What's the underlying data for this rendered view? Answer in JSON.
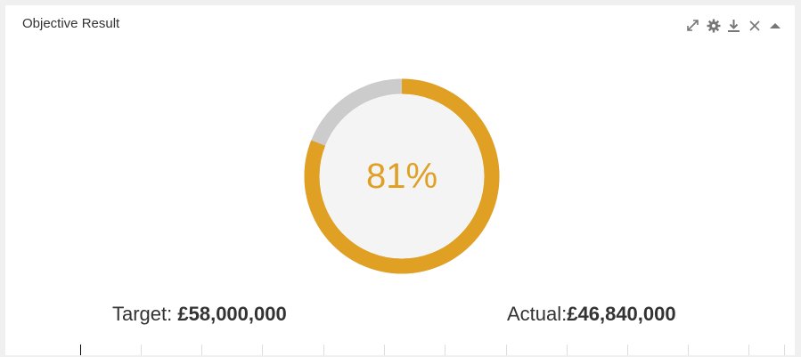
{
  "widget": {
    "title": "Objective Result",
    "toolbar": {
      "icons": [
        "expand-icon",
        "gear-icon",
        "download-icon",
        "close-icon",
        "collapse-up-icon"
      ]
    }
  },
  "objective": {
    "percent_label": "81%",
    "progress_fraction": 0.81,
    "target_label": "Target: ",
    "target_value": "£58,000,000",
    "actual_label": "Actual:",
    "actual_value": "£46,840,000"
  },
  "colors": {
    "progress": "#e0a023",
    "remaining": "#cccccc",
    "center": "#f4f4f4"
  }
}
